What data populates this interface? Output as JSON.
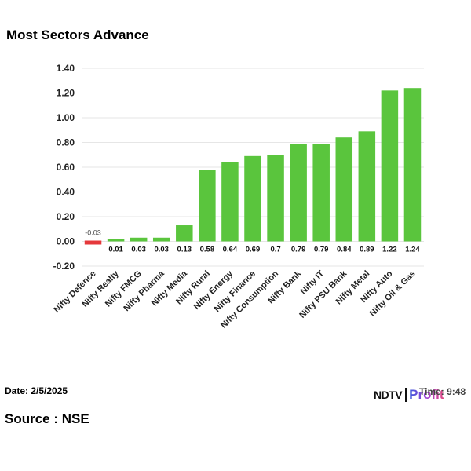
{
  "title": "Most Sectors Advance",
  "date_label": "Date: 2/5/2025",
  "time_label": "Time: 9:48",
  "source_label": "Source : NSE",
  "brand": {
    "name_a": "NDTV",
    "name_b": "Profit"
  },
  "colors": {
    "positive": "#5ac53d",
    "negative": "#e5383b",
    "grid": "#e6e6e6"
  },
  "chart_data": {
    "type": "bar",
    "title": "Most Sectors Advance",
    "xlabel": "",
    "ylabel": "",
    "ylim": [
      -0.2,
      1.4
    ],
    "yticks": [
      "1.40",
      "1.20",
      "1.00",
      "0.80",
      "0.60",
      "0.40",
      "0.20",
      "0.00",
      "-0.20"
    ],
    "ytick_values": [
      1.4,
      1.2,
      1.0,
      0.8,
      0.6,
      0.4,
      0.2,
      0.0,
      -0.2
    ],
    "grid": true,
    "legend": "none",
    "categories": [
      "Nifty Defence",
      "Nifty Realty",
      "Nifty FMCG",
      "Nifty Pharma",
      "Nifty Media",
      "Nifty Rural",
      "Nifty Energy",
      "Nifty Finance",
      "Nifty Consumption",
      "Nifty Bank",
      "Nifty IT",
      "Nifty PSU Bank",
      "Nifty Metal",
      "Nifty Auto",
      "Nifty Oil & Gas"
    ],
    "values": [
      -0.03,
      0.01,
      0.03,
      0.03,
      0.13,
      0.58,
      0.64,
      0.69,
      0.7,
      0.79,
      0.79,
      0.84,
      0.89,
      1.22,
      1.24
    ],
    "data_labels": [
      "-0.03",
      "0.01",
      "0.03",
      "0.03",
      "0.13",
      "0.58",
      "0.64",
      "0.69",
      "0.7",
      "0.79",
      "0.79",
      "0.84",
      "0.89",
      "1.22",
      "1.24"
    ]
  }
}
